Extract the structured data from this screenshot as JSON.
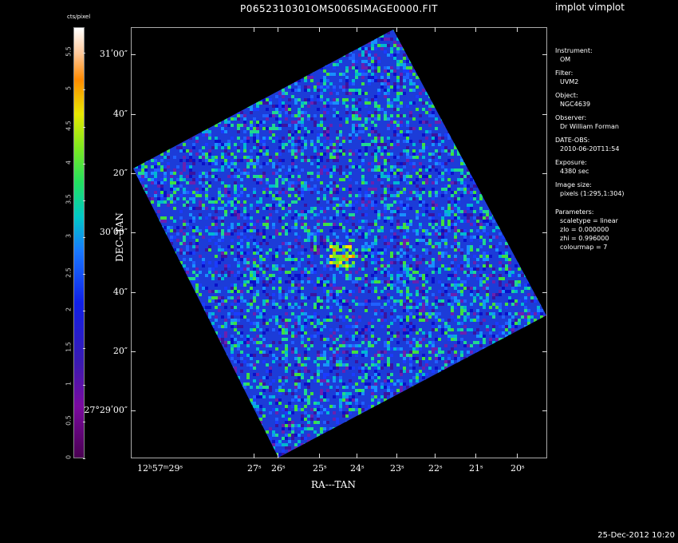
{
  "title": "P0652310301OMS006SIMAGE0000.FIT",
  "tool": "implot vimplot",
  "footer": "25-Dec-2012 10:20",
  "colorbar": {
    "label": "cts/pixel",
    "ticks": [
      "0",
      "0.5",
      "1",
      "1.5",
      "2",
      "2.5",
      "3",
      "3.5",
      "4",
      "4.5",
      "5",
      "5.5"
    ]
  },
  "axes": {
    "xlabel": "RA---TAN",
    "ylabel": "DEC--TAN",
    "yticks": [
      "31ʹ00″",
      "40″",
      "20″",
      "30ʹ00″",
      "40″",
      "20″",
      "27°29ʹ00″"
    ],
    "xticks": [
      "12ʰ57ᵐ29ˢ",
      "27ˢ",
      "26ˢ",
      "25ˢ",
      "24ˢ",
      "23ˢ",
      "22ˢ",
      "21ˢ",
      "20ˢ"
    ]
  },
  "meta": [
    {
      "k": "Instrument:",
      "v": "OM"
    },
    {
      "k": "Filter:",
      "v": "UVM2"
    },
    {
      "k": "Object:",
      "v": "NGC4639"
    },
    {
      "k": "Observer:",
      "v": "Dr William Forman"
    },
    {
      "k": "DATE-OBS:",
      "v": "2010-06-20T11:54"
    },
    {
      "k": "Exposure:",
      "v": "4380 sec"
    },
    {
      "k": "Image size:",
      "v": "pixels (1:295,1:304)"
    }
  ],
  "params_title": "Parameters:",
  "params": [
    "scaletype = linear",
    "zlo = 0.000000",
    "zhi = 0.996000",
    "colourmap =   7"
  ]
}
